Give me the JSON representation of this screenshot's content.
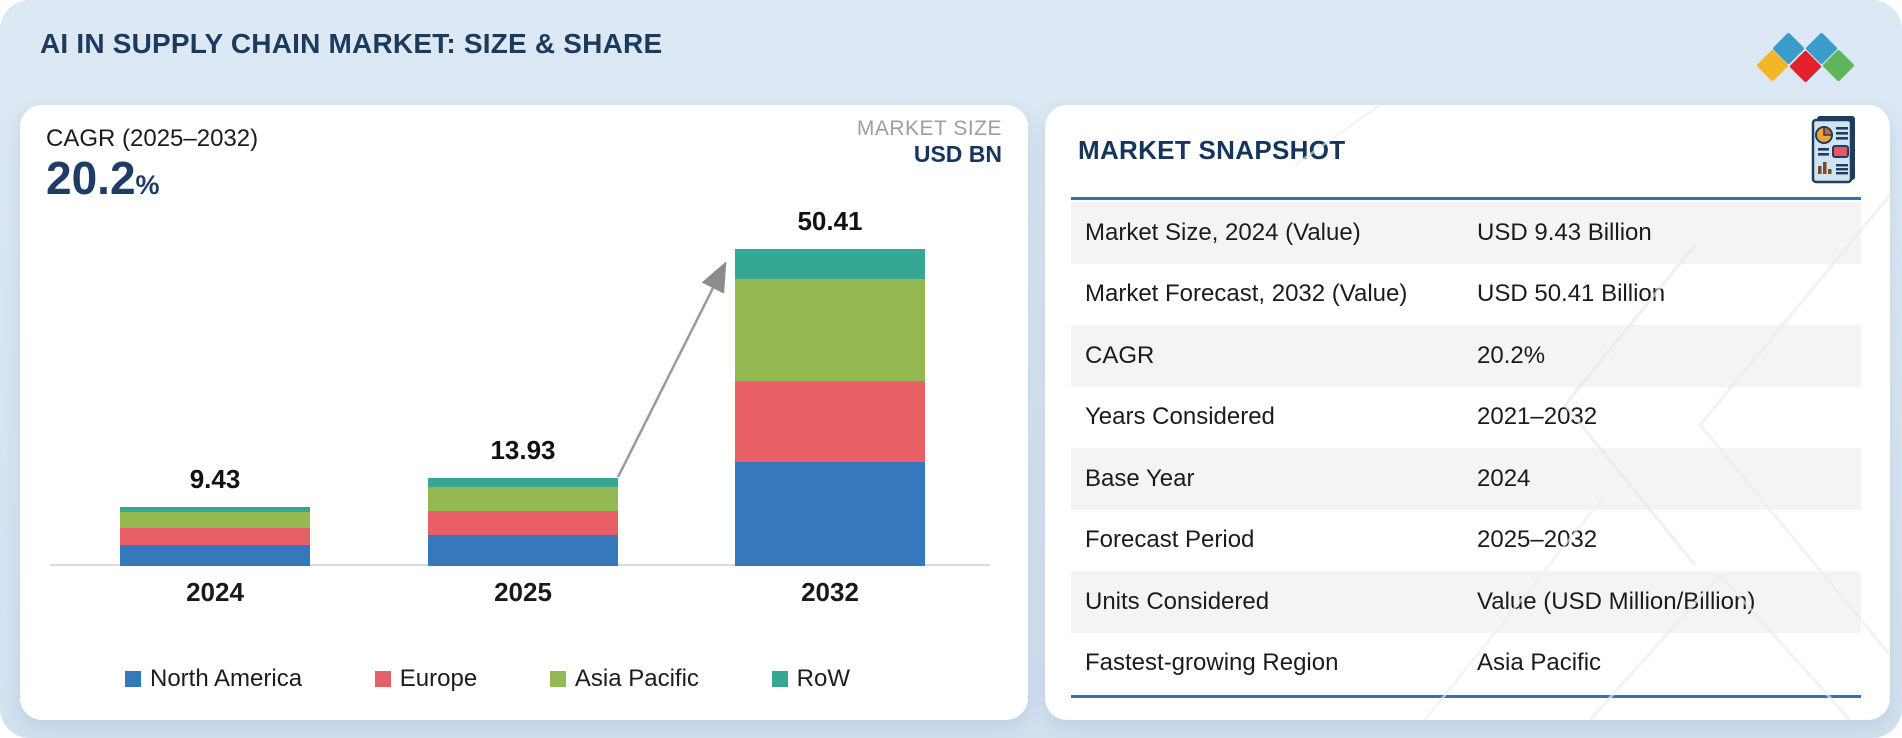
{
  "page": {
    "title": "AI IN SUPPLY CHAIN MARKET: SIZE & SHARE"
  },
  "logo": {
    "diamond_colors": [
      "#3b9cc9",
      "#3b9cc9",
      "#f2b629",
      "#e5202e",
      "#5fb65a"
    ]
  },
  "chart_panel": {
    "cagr_label": "CAGR (2025–2032)",
    "cagr_value": "20.2",
    "cagr_unit": "%",
    "market_size_label": "MARKET SIZE",
    "market_size_unit": "USD BN"
  },
  "chart_data": {
    "type": "bar",
    "stacked": true,
    "categories": [
      "2024",
      "2025",
      "2032"
    ],
    "totals": [
      9.43,
      13.93,
      50.41
    ],
    "series": [
      {
        "name": "North America",
        "color": "#3578bc",
        "values": [
          3.4,
          4.95,
          16.55
        ]
      },
      {
        "name": "Europe",
        "color": "#e85f66",
        "values": [
          2.6,
          3.85,
          12.9
        ]
      },
      {
        "name": "Asia Pacific",
        "color": "#94b951",
        "values": [
          2.6,
          3.85,
          16.2
        ]
      },
      {
        "name": "RoW",
        "color": "#35a894",
        "values": [
          0.83,
          1.28,
          4.76
        ]
      }
    ],
    "ylabel": "USD BN",
    "grid": false,
    "legend_position": "bottom",
    "annotation": "growth arrow from 2025 bar to 2032 bar"
  },
  "snapshot": {
    "title": "MARKET SNAPSHOT",
    "rows": [
      {
        "label": "Market Size, 2024 (Value)",
        "value": "USD 9.43 Billion"
      },
      {
        "label": "Market Forecast, 2032 (Value)",
        "value": "USD 50.41 Billion"
      },
      {
        "label": "CAGR",
        "value": "20.2%"
      },
      {
        "label": "Years Considered",
        "value": "2021–2032"
      },
      {
        "label": "Base Year",
        "value": "2024"
      },
      {
        "label": "Forecast Period",
        "value": "2025–2032"
      },
      {
        "label": "Units Considered",
        "value": "Value (USD Million/Billion)"
      },
      {
        "label": "Fastest-growing Region",
        "value": "Asia Pacific"
      }
    ]
  }
}
